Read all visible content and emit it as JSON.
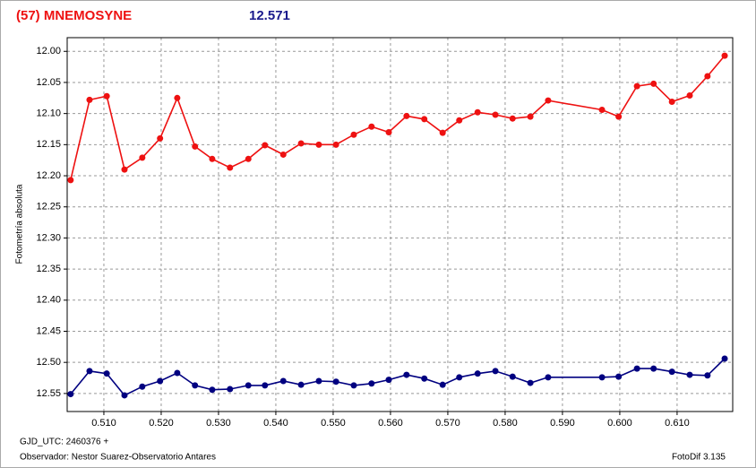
{
  "chart_data": {
    "type": "line",
    "title": "(57) MNEMOSYNE",
    "subtitle": "12.571",
    "y_label": "Fotometría absoluta",
    "x_label": "GJD_UTC: 2460376 +",
    "observer": "Observador: Nestor Suarez-Observatorio Antares",
    "software": "FotoDif 3.135",
    "x": [
      0.5042,
      0.5075,
      0.5105,
      0.5136,
      0.5167,
      0.5198,
      0.5228,
      0.5259,
      0.5289,
      0.532,
      0.5352,
      0.5381,
      0.5413,
      0.5444,
      0.5475,
      0.5505,
      0.5536,
      0.5567,
      0.5597,
      0.5628,
      0.5659,
      0.5691,
      0.572,
      0.5752,
      0.5783,
      0.5813,
      0.5844,
      0.5875,
      0.5969,
      0.5998,
      0.603,
      0.6059,
      0.6091,
      0.6122,
      0.6153,
      0.6183
    ],
    "series": [
      {
        "color": "#ee1111",
        "values": [
          12.207,
          12.078,
          12.072,
          12.19,
          12.171,
          12.14,
          12.075,
          12.153,
          12.173,
          12.187,
          12.173,
          12.151,
          12.166,
          12.148,
          12.15,
          12.15,
          12.134,
          12.121,
          12.13,
          12.104,
          12.109,
          12.131,
          12.111,
          12.098,
          12.102,
          12.108,
          12.105,
          12.079,
          12.094,
          12.105,
          12.056,
          12.052,
          12.081,
          12.071,
          12.04,
          12.007
        ]
      },
      {
        "color": "#000080",
        "values": [
          12.551,
          12.514,
          12.518,
          12.553,
          12.539,
          12.53,
          12.517,
          12.537,
          12.544,
          12.543,
          12.537,
          12.537,
          12.53,
          12.536,
          12.53,
          12.531,
          12.537,
          12.534,
          12.528,
          12.52,
          12.526,
          12.536,
          12.524,
          12.518,
          12.514,
          12.523,
          12.533,
          12.524,
          12.524,
          12.523,
          12.51,
          12.51,
          12.515,
          12.52,
          12.521,
          12.494
        ]
      }
    ],
    "xlim": [
      0.5036,
      0.6197
    ],
    "xticks": [
      {
        "value": 0.51,
        "label": "0.510"
      },
      {
        "value": 0.52,
        "label": "0.520"
      },
      {
        "value": 0.53,
        "label": "0.530"
      },
      {
        "value": 0.54,
        "label": "0.540"
      },
      {
        "value": 0.55,
        "label": "0.550"
      },
      {
        "value": 0.56,
        "label": "0.560"
      },
      {
        "value": 0.57,
        "label": "0.570"
      },
      {
        "value": 0.58,
        "label": "0.580"
      },
      {
        "value": 0.59,
        "label": "0.590"
      },
      {
        "value": 0.6,
        "label": "0.600"
      },
      {
        "value": 0.61,
        "label": "0.610"
      }
    ],
    "ylim": [
      12.579,
      11.978
    ],
    "yticks": [
      {
        "value": 12,
        "label": "12.00"
      },
      12.05,
      {
        "value": 12.1,
        "label": "12.10"
      },
      12.15,
      {
        "value": 12.2,
        "label": "12.20"
      },
      12.25,
      {
        "value": 12.3,
        "label": "12.30"
      },
      12.35,
      {
        "value": 12.4,
        "label": "12.40"
      },
      12.45,
      {
        "value": 12.5,
        "label": "12.50"
      },
      12.55
    ],
    "grid": true
  }
}
